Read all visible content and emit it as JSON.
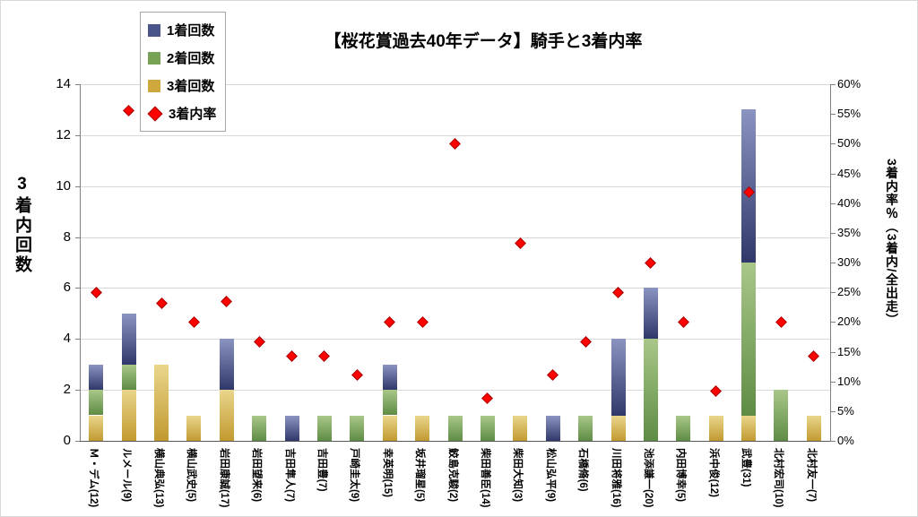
{
  "legend": [
    {
      "label": "1着回数",
      "marker": "square",
      "color": "#4a5488"
    },
    {
      "label": "2着回数",
      "marker": "square",
      "color": "#76a356"
    },
    {
      "label": "3着回数",
      "marker": "square",
      "color": "#cfa83d"
    },
    {
      "label": "3着内率",
      "marker": "diamond",
      "color": "#ff0000"
    }
  ],
  "chart_data": {
    "type": "bar",
    "subtype": "stacked-bars-with-scatter-overlay",
    "title": "【桜花賞過去40年データ】騎手と3着内率",
    "grid": true,
    "legend_position": "top-left",
    "left_axis": {
      "label": "3着内回数",
      "min": 0,
      "max": 14,
      "step": 2
    },
    "right_axis": {
      "label": "3着内率％（3着内/全出走）",
      "min": 0,
      "max": 60,
      "step": 5,
      "suffix": "%"
    },
    "categories": [
      "Ｍ・デム(12)",
      "ルメール(9)",
      "横山典弘(13)",
      "横山武史(5)",
      "岩田康誠(17)",
      "岩田望来(6)",
      "吉田隼人(7)",
      "吉田豊(7)",
      "戸崎圭太(9)",
      "幸英明(15)",
      "坂井瑠星(5)",
      "鮫島克駿(2)",
      "柴田善臣(14)",
      "柴田大知(3)",
      "松山弘平(9)",
      "石橋脩(6)",
      "川田将雅(16)",
      "池添謙一(20)",
      "内田博幸(5)",
      "浜中俊(12)",
      "武豊(31)",
      "北村宏司(10)",
      "北村友一(7)"
    ],
    "series": [
      {
        "name": "1着回数",
        "type": "bar",
        "axis": "left",
        "color_top": "#8b94c1",
        "color_bottom": "#30386b",
        "values": [
          1,
          2,
          0,
          0,
          2,
          0,
          1,
          0,
          0,
          1,
          0,
          0,
          0,
          0,
          1,
          0,
          3,
          2,
          0,
          0,
          6,
          0,
          0
        ]
      },
      {
        "name": "2着回数",
        "type": "bar",
        "axis": "left",
        "color_top": "#a9c789",
        "color_bottom": "#5e8c44",
        "values": [
          1,
          1,
          0,
          0,
          0,
          1,
          0,
          1,
          1,
          1,
          0,
          1,
          1,
          0,
          0,
          1,
          0,
          4,
          1,
          0,
          6,
          2,
          0
        ]
      },
      {
        "name": "3着回数",
        "type": "bar",
        "axis": "left",
        "color_top": "#e9d68c",
        "color_bottom": "#c2992f",
        "values": [
          1,
          2,
          3,
          1,
          2,
          0,
          0,
          0,
          0,
          1,
          1,
          0,
          0,
          1,
          0,
          0,
          1,
          0,
          0,
          1,
          1,
          0,
          1
        ]
      },
      {
        "name": "3着内率",
        "type": "scatter",
        "axis": "right",
        "color": "#ff0000",
        "values": [
          25.0,
          55.6,
          23.1,
          20.0,
          23.5,
          16.7,
          14.3,
          14.3,
          11.1,
          20.0,
          20.0,
          50.0,
          7.1,
          33.3,
          11.1,
          16.7,
          25.0,
          30.0,
          20.0,
          8.3,
          41.9,
          20.0,
          14.3
        ]
      }
    ]
  }
}
